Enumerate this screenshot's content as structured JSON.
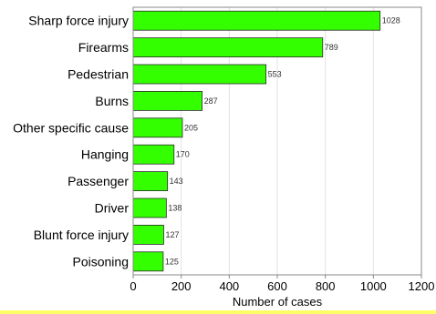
{
  "chart_data": {
    "type": "bar",
    "orientation": "horizontal",
    "categories": [
      "Sharp force injury",
      "Firearms",
      "Pedestrian",
      "Burns",
      "Other specific cause",
      "Hanging",
      "Passenger",
      "Driver",
      "Blunt force injury",
      "Poisoning"
    ],
    "values": [
      1028,
      789,
      553,
      287,
      205,
      170,
      143,
      138,
      127,
      125
    ],
    "data_labels": [
      "1028",
      "789",
      "553",
      "287",
      "205",
      "170",
      "143",
      "138",
      "127",
      "125"
    ],
    "xlabel": "Number of cases",
    "ylabel": "",
    "title": "",
    "xlim": [
      0,
      1200
    ],
    "xticks": [
      0,
      200,
      400,
      600,
      800,
      1000,
      1200
    ],
    "xtick_labels": [
      "0",
      "200",
      "400",
      "600",
      "800",
      "1000",
      "1200"
    ],
    "grid": "vertical",
    "legend": "none",
    "colors": {
      "bar_fill": "#33ff00",
      "bar_stroke": "#2a2a2a",
      "grid": "#e3e3e3",
      "frame": "#888888",
      "footer_strip": "#ffff66"
    }
  }
}
